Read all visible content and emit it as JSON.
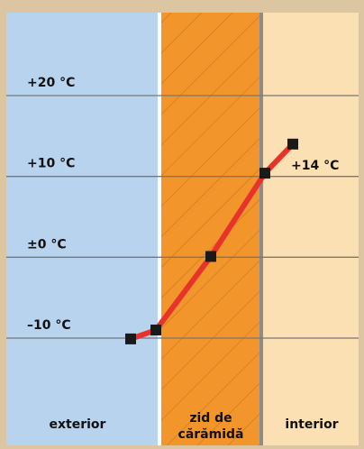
{
  "chart_data": {
    "type": "line",
    "title": "",
    "xlabel": "",
    "ylabel": "",
    "ylim": [
      -14,
      25
    ],
    "y_ticks": [
      {
        "value": 20,
        "label": "+20 °C"
      },
      {
        "value": 10,
        "label": "+10 °C"
      },
      {
        "value": 0,
        "label": "±0 °C"
      },
      {
        "value": -10,
        "label": "–10 °C"
      }
    ],
    "zones": [
      {
        "id": "exterior",
        "label": "exterior",
        "color": "#b7d3ee"
      },
      {
        "id": "wall",
        "label_lines": [
          "zid de",
          "cărămidă"
        ],
        "color": "#f2962c"
      },
      {
        "id": "interior",
        "label": "interior",
        "color": "#fbe0b4"
      }
    ],
    "series": [
      {
        "color": "#e8332b",
        "points": [
          {
            "position": "exterior",
            "y": -10.1
          },
          {
            "position": "exterior-surface",
            "y": -9.0
          },
          {
            "position": "wall-middle",
            "y": 0.1
          },
          {
            "position": "interior-surface",
            "y": 10.4
          },
          {
            "position": "interior",
            "y": 14.0
          }
        ]
      }
    ],
    "annotations": [
      {
        "text": "+14 °C",
        "point_index": 4
      }
    ],
    "grid": true
  }
}
